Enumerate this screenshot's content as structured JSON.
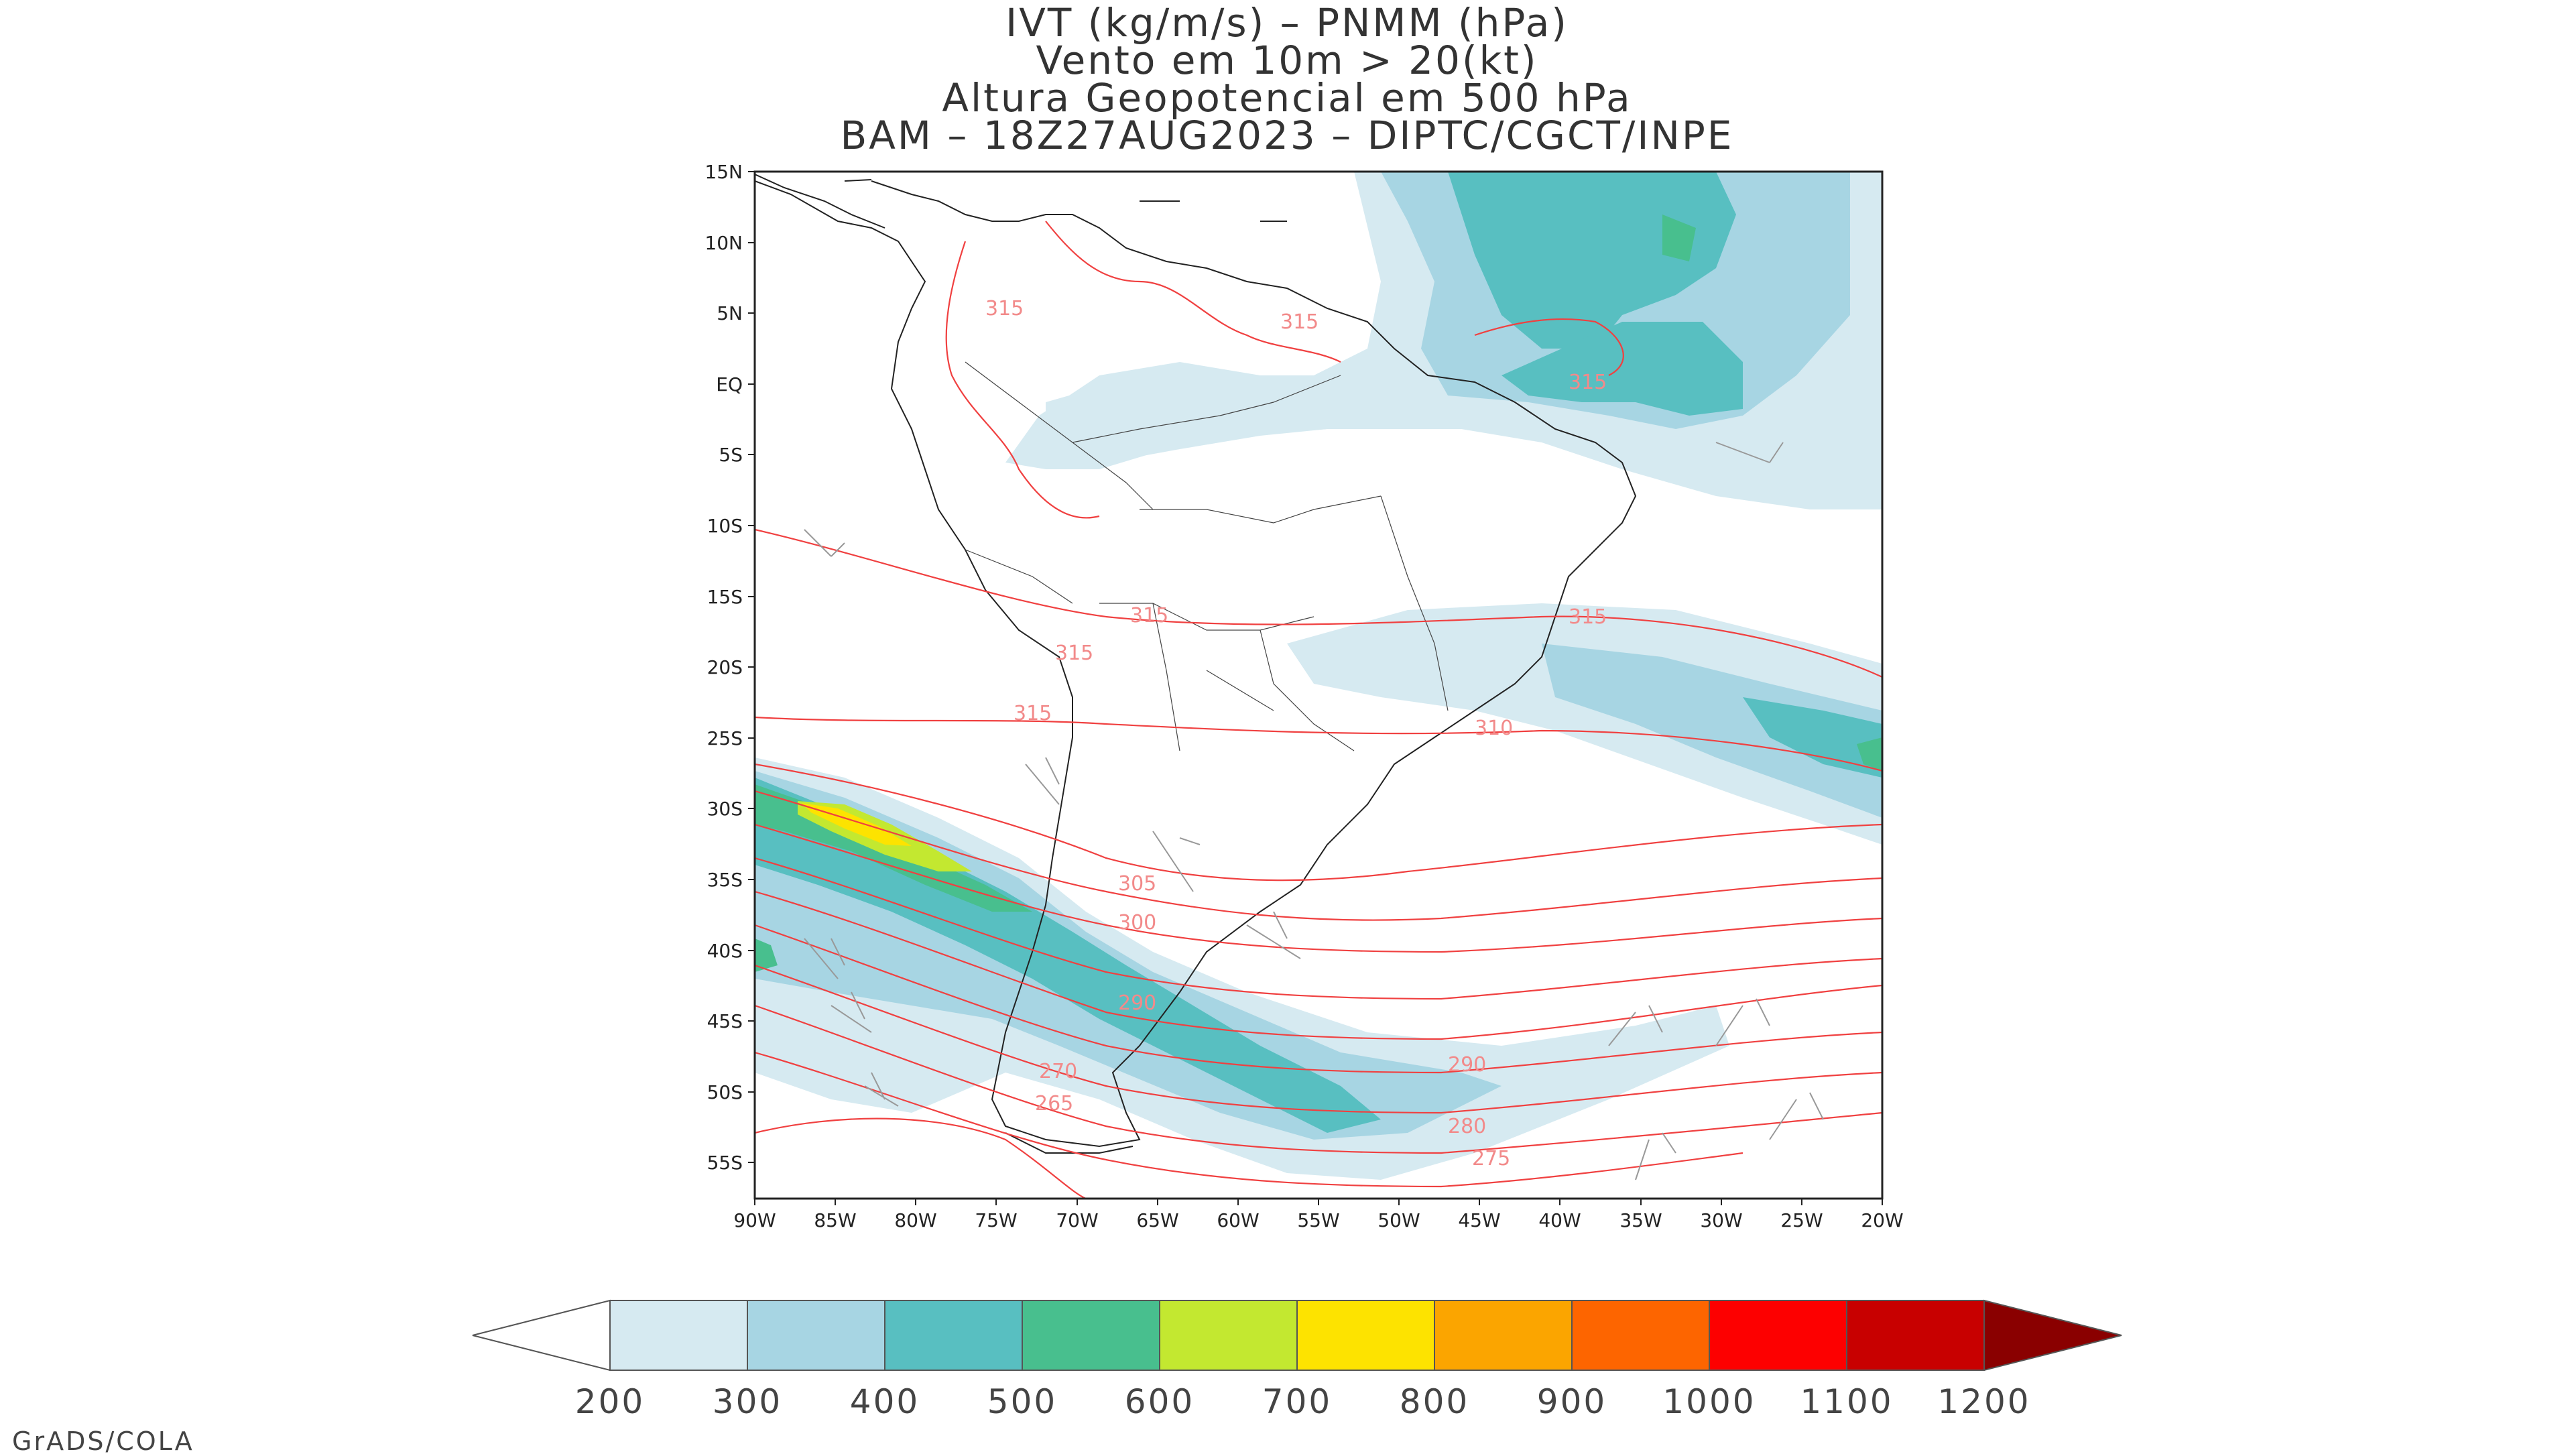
{
  "title": {
    "line1": "IVT (kg/m/s) – PNMM (hPa)",
    "line2": "Vento em 10m > 20(kt)",
    "line3": "Altura Geopotencial em 500 hPa",
    "line4": "BAM – 18Z27AUG2023 – DIPTC/CGCT/INPE"
  },
  "map": {
    "lon_range": [
      -90,
      -20
    ],
    "lat_range": [
      -57.5,
      15
    ],
    "lat_ticks": [
      "15N",
      "10N",
      "5N",
      "EQ",
      "5S",
      "10S",
      "15S",
      "20S",
      "25S",
      "30S",
      "35S",
      "40S",
      "45S",
      "50S",
      "55S"
    ],
    "lon_ticks": [
      "90W",
      "85W",
      "80W",
      "75W",
      "70W",
      "65W",
      "60W",
      "55W",
      "50W",
      "45W",
      "40W",
      "35W",
      "30W",
      "25W",
      "20W"
    ],
    "contour_labels": [
      "315",
      "315",
      "315",
      "315",
      "315",
      "315",
      "315",
      "310",
      "305",
      "300",
      "290",
      "290",
      "280",
      "275",
      "270",
      "265"
    ]
  },
  "colorbar": {
    "labels": [
      "200",
      "300",
      "400",
      "500",
      "600",
      "700",
      "800",
      "900",
      "1000",
      "1100",
      "1200"
    ],
    "colors": [
      "#d6eaf1",
      "#a7d5e3",
      "#58bfc1",
      "#48bf8e",
      "#c3e830",
      "#fde300",
      "#fba500",
      "#fd6500",
      "#fd0000",
      "#c80000",
      "#8a0000"
    ]
  },
  "credit": "GrADS/COLA"
}
